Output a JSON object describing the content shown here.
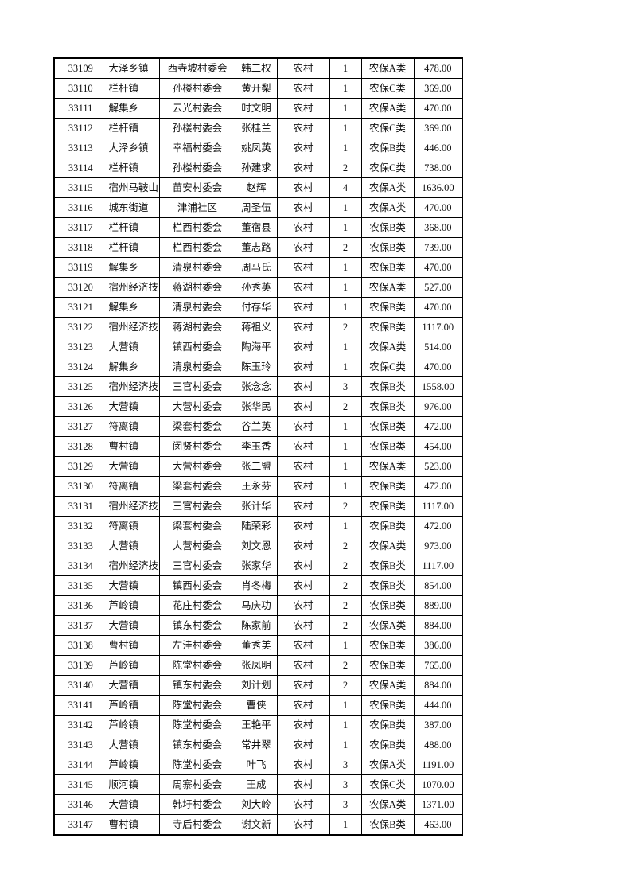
{
  "table": {
    "rows": [
      [
        "33109",
        "大泽乡镇",
        "西寺坡村委会",
        "韩二权",
        "农村",
        "1",
        "农保A类",
        "478.00"
      ],
      [
        "33110",
        "栏杆镇",
        "孙楼村委会",
        "黄开梨",
        "农村",
        "1",
        "农保C类",
        "369.00"
      ],
      [
        "33111",
        "解集乡",
        "云光村委会",
        "时文明",
        "农村",
        "1",
        "农保A类",
        "470.00"
      ],
      [
        "33112",
        "栏杆镇",
        "孙楼村委会",
        "张桂兰",
        "农村",
        "1",
        "农保C类",
        "369.00"
      ],
      [
        "33113",
        "大泽乡镇",
        "幸福村委会",
        "姚凤英",
        "农村",
        "1",
        "农保B类",
        "446.00"
      ],
      [
        "33114",
        "栏杆镇",
        "孙楼村委会",
        "孙建求",
        "农村",
        "2",
        "农保C类",
        "738.00"
      ],
      [
        "33115",
        "宿州马鞍山",
        "苗安村委会",
        "赵辉",
        "农村",
        "4",
        "农保A类",
        "1636.00"
      ],
      [
        "33116",
        "城东街道",
        "津浦社区",
        "周圣伍",
        "农村",
        "1",
        "农保A类",
        "470.00"
      ],
      [
        "33117",
        "栏杆镇",
        "栏西村委会",
        "董宿县",
        "农村",
        "1",
        "农保B类",
        "368.00"
      ],
      [
        "33118",
        "栏杆镇",
        "栏西村委会",
        "董志路",
        "农村",
        "2",
        "农保B类",
        "739.00"
      ],
      [
        "33119",
        "解集乡",
        "清泉村委会",
        "周马氏",
        "农村",
        "1",
        "农保B类",
        "470.00"
      ],
      [
        "33120",
        "宿州经济技",
        "蒋湖村委会",
        "孙秀英",
        "农村",
        "1",
        "农保A类",
        "527.00"
      ],
      [
        "33121",
        "解集乡",
        "清泉村委会",
        "付存华",
        "农村",
        "1",
        "农保B类",
        "470.00"
      ],
      [
        "33122",
        "宿州经济技",
        "蒋湖村委会",
        "蒋祖义",
        "农村",
        "2",
        "农保B类",
        "1117.00"
      ],
      [
        "33123",
        "大营镇",
        "镇西村委会",
        "陶海平",
        "农村",
        "1",
        "农保A类",
        "514.00"
      ],
      [
        "33124",
        "解集乡",
        "清泉村委会",
        "陈玉玲",
        "农村",
        "1",
        "农保C类",
        "470.00"
      ],
      [
        "33125",
        "宿州经济技",
        "三官村委会",
        "张念念",
        "农村",
        "3",
        "农保B类",
        "1558.00"
      ],
      [
        "33126",
        "大营镇",
        "大营村委会",
        "张华民",
        "农村",
        "2",
        "农保B类",
        "976.00"
      ],
      [
        "33127",
        "符离镇",
        "梁套村委会",
        "谷兰英",
        "农村",
        "1",
        "农保B类",
        "472.00"
      ],
      [
        "33128",
        "曹村镇",
        "闵贤村委会",
        "李玉香",
        "农村",
        "1",
        "农保B类",
        "454.00"
      ],
      [
        "33129",
        "大营镇",
        "大营村委会",
        "张二盟",
        "农村",
        "1",
        "农保A类",
        "523.00"
      ],
      [
        "33130",
        "符离镇",
        "梁套村委会",
        "王永芬",
        "农村",
        "1",
        "农保B类",
        "472.00"
      ],
      [
        "33131",
        "宿州经济技",
        "三官村委会",
        "张计华",
        "农村",
        "2",
        "农保B类",
        "1117.00"
      ],
      [
        "33132",
        "符离镇",
        "梁套村委会",
        "陆荣彩",
        "农村",
        "1",
        "农保B类",
        "472.00"
      ],
      [
        "33133",
        "大营镇",
        "大营村委会",
        "刘文恩",
        "农村",
        "2",
        "农保A类",
        "973.00"
      ],
      [
        "33134",
        "宿州经济技",
        "三官村委会",
        "张家华",
        "农村",
        "2",
        "农保B类",
        "1117.00"
      ],
      [
        "33135",
        "大营镇",
        "镇西村委会",
        "肖冬梅",
        "农村",
        "2",
        "农保B类",
        "854.00"
      ],
      [
        "33136",
        "芦岭镇",
        "花庄村委会",
        "马庆功",
        "农村",
        "2",
        "农保B类",
        "889.00"
      ],
      [
        "33137",
        "大营镇",
        "镇东村委会",
        "陈家前",
        "农村",
        "2",
        "农保A类",
        "884.00"
      ],
      [
        "33138",
        "曹村镇",
        "左洼村委会",
        "董秀美",
        "农村",
        "1",
        "农保B类",
        "386.00"
      ],
      [
        "33139",
        "芦岭镇",
        "陈堂村委会",
        "张凤明",
        "农村",
        "2",
        "农保B类",
        "765.00"
      ],
      [
        "33140",
        "大营镇",
        "镇东村委会",
        "刘计划",
        "农村",
        "2",
        "农保A类",
        "884.00"
      ],
      [
        "33141",
        "芦岭镇",
        "陈堂村委会",
        "曹侠",
        "农村",
        "1",
        "农保B类",
        "444.00"
      ],
      [
        "33142",
        "芦岭镇",
        "陈堂村委会",
        "王艳平",
        "农村",
        "1",
        "农保B类",
        "387.00"
      ],
      [
        "33143",
        "大营镇",
        "镇东村委会",
        "常井翠",
        "农村",
        "1",
        "农保B类",
        "488.00"
      ],
      [
        "33144",
        "芦岭镇",
        "陈堂村委会",
        "叶飞",
        "农村",
        "3",
        "农保A类",
        "1191.00"
      ],
      [
        "33145",
        "顺河镇",
        "周寨村委会",
        "王成",
        "农村",
        "3",
        "农保C类",
        "1070.00"
      ],
      [
        "33146",
        "大营镇",
        "韩圩村委会",
        "刘大岭",
        "农村",
        "3",
        "农保A类",
        "1371.00"
      ],
      [
        "33147",
        "曹村镇",
        "寺后村委会",
        "谢文新",
        "农村",
        "1",
        "农保B类",
        "463.00"
      ]
    ]
  }
}
